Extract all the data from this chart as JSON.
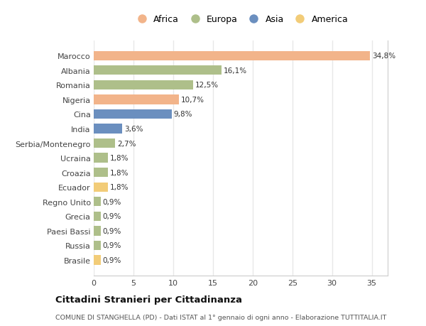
{
  "categories": [
    "Marocco",
    "Albania",
    "Romania",
    "Nigeria",
    "Cina",
    "India",
    "Serbia/Montenegro",
    "Ucraina",
    "Croazia",
    "Ecuador",
    "Regno Unito",
    "Grecia",
    "Paesi Bassi",
    "Russia",
    "Brasile"
  ],
  "values": [
    34.8,
    16.1,
    12.5,
    10.7,
    9.8,
    3.6,
    2.7,
    1.8,
    1.8,
    1.8,
    0.9,
    0.9,
    0.9,
    0.9,
    0.9
  ],
  "labels": [
    "34,8%",
    "16,1%",
    "12,5%",
    "10,7%",
    "9,8%",
    "3,6%",
    "2,7%",
    "1,8%",
    "1,8%",
    "1,8%",
    "0,9%",
    "0,9%",
    "0,9%",
    "0,9%",
    "0,9%"
  ],
  "continents": [
    "Africa",
    "Europa",
    "Europa",
    "Africa",
    "Asia",
    "Asia",
    "Europa",
    "Europa",
    "Europa",
    "America",
    "Europa",
    "Europa",
    "Europa",
    "Europa",
    "America"
  ],
  "continent_colors": {
    "Africa": "#F2B48A",
    "Europa": "#AEBF8A",
    "Asia": "#6B8FBF",
    "America": "#F2CC78"
  },
  "legend_order": [
    "Africa",
    "Europa",
    "Asia",
    "America"
  ],
  "title": "Cittadini Stranieri per Cittadinanza",
  "subtitle": "COMUNE DI STANGHELLA (PD) - Dati ISTAT al 1° gennaio di ogni anno - Elaborazione TUTTITALIA.IT",
  "xlim": [
    0,
    37
  ],
  "background_color": "#ffffff",
  "grid_color": "#e8e8e8",
  "bar_height": 0.65
}
